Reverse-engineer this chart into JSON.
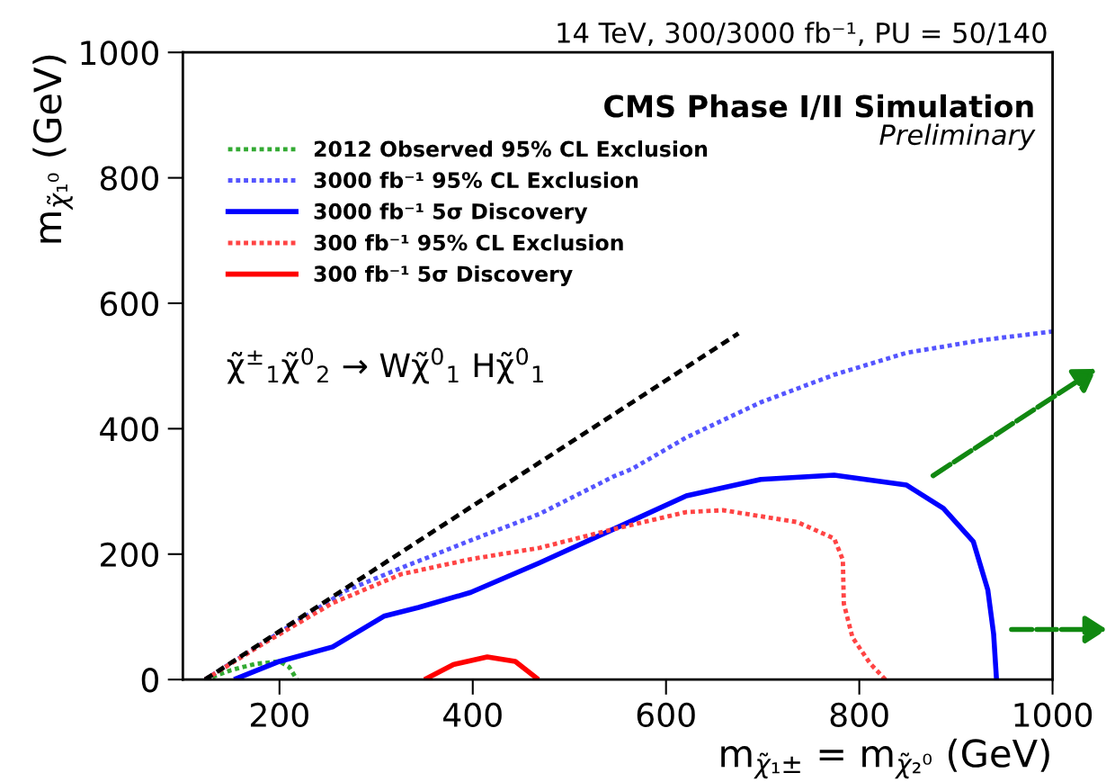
{
  "chart_data": {
    "type": "line",
    "title": "14 TeV, 300/3000 fb⁻¹, PU = 50/140",
    "xlabel": "m$_{χ̃₁±}$ = m$_{χ̃₂⁰}$ (GeV)",
    "ylabel": "m$_{χ̃₁⁰}$ (GeV)",
    "annotations": [
      "CMS Phase I/II Simulation",
      "Preliminary",
      "χ̃$^{±}$$_{1}$χ̃$^{0}$$_{2}$ → Wχ̃$^{0}$$_{1}$ Hχ̃$^{0}$$_{1}$"
    ],
    "xlim": [
      100,
      1000
    ],
    "ylim": [
      0,
      1000
    ],
    "xticks": [
      200,
      400,
      600,
      800,
      1000
    ],
    "yticks": [
      0,
      200,
      400,
      600,
      800,
      1000
    ],
    "legend": "top left",
    "grid": false,
    "marker": "none",
    "series": [
      {
        "name": "2012 Observed 95% CL Exclusion",
        "color": "#33aa33",
        "line_style": "dotted",
        "x": [
          123,
          150,
          175,
          200,
          210,
          218
        ],
        "values": [
          0,
          15,
          25,
          29,
          20,
          0
        ]
      },
      {
        "name": "3000 fb⁻¹ 95% CL Exclusion",
        "color": "#5555ff",
        "line_style": "dotted",
        "x": [
          123,
          200,
          269,
          326,
          398,
          469,
          546,
          565,
          621,
          698,
          774,
          849,
          926,
          1000
        ],
        "values": [
          0,
          75,
          142,
          178,
          222,
          264,
          324,
          336,
          386,
          442,
          486,
          521,
          541,
          555
        ]
      },
      {
        "name": "3000 fb⁻¹ 5σ Discovery",
        "color": "#0000ff",
        "line_style": "solid",
        "x": [
          153,
          200,
          255,
          308,
          344,
          398,
          469,
          546,
          621,
          698,
          774,
          849,
          887,
          918,
          933,
          939,
          942
        ],
        "values": [
          0,
          29,
          52,
          101,
          115,
          139,
          186,
          240,
          293,
          319,
          326,
          310,
          273,
          220,
          143,
          73,
          0
        ]
      },
      {
        "name": "300 fb⁻¹ 95% CL Exclusion",
        "color": "#ff4444",
        "line_style": "dotted",
        "x": [
          123,
          183,
          255,
          326,
          398,
          469,
          546,
          621,
          659,
          736,
          774,
          783,
          784,
          793,
          811,
          827
        ],
        "values": [
          0,
          57,
          122,
          168,
          192,
          210,
          240,
          267,
          270,
          251,
          225,
          191,
          121,
          67,
          26,
          0
        ]
      },
      {
        "name": "300 fb⁻¹ 5σ Discovery",
        "color": "#ff0000",
        "line_style": "solid",
        "x": [
          350,
          380,
          415,
          444,
          468
        ],
        "values": [
          0,
          24,
          36,
          29,
          0
        ]
      },
      {
        "color": "#000000",
        "line_style": "dashed",
        "x": [
          123,
          675
        ],
        "values": [
          0,
          552
        ]
      }
    ]
  }
}
